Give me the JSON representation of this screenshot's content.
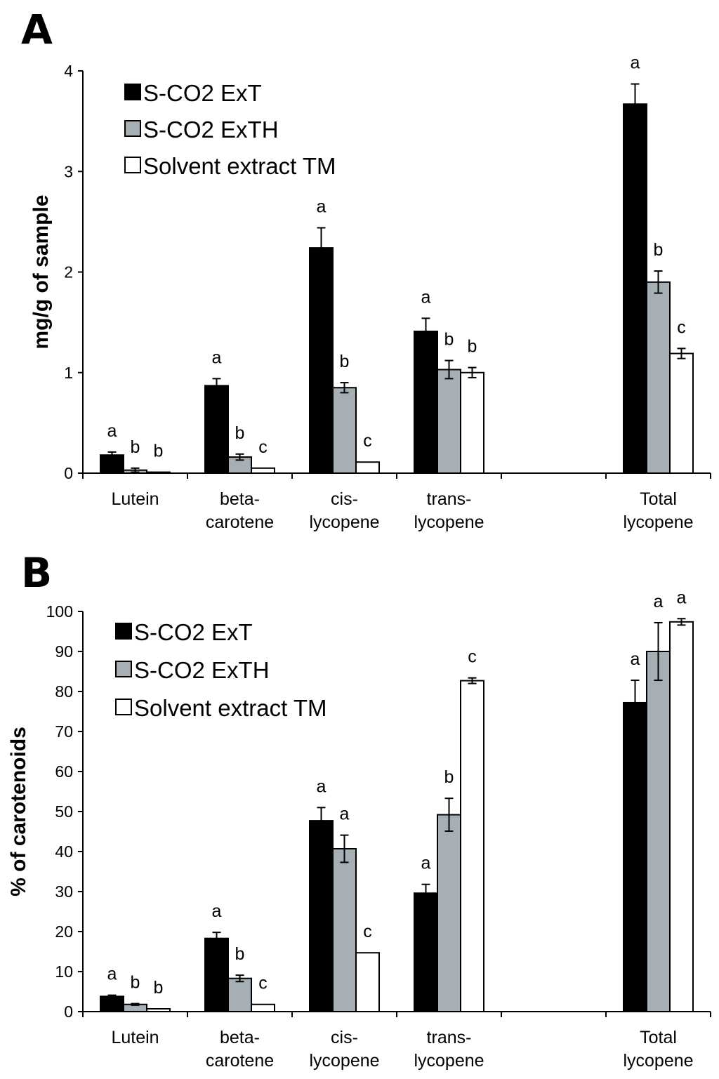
{
  "chart_data": [
    {
      "panel": "A",
      "type": "bar",
      "ylabel": "mg/g of sample",
      "xlabel": "",
      "ylim": [
        0,
        4
      ],
      "yticks": [
        "0",
        "1",
        "2",
        "3",
        "4"
      ],
      "categories": [
        [
          "Lutein"
        ],
        [
          "beta-",
          "carotene"
        ],
        [
          "cis-",
          "lycopene"
        ],
        [
          "trans-",
          "lycopene"
        ],
        [
          ""
        ],
        [
          "Total",
          "lycopene"
        ]
      ],
      "legend": {
        "position": "top-left",
        "entries": [
          "S-CO2 ExT",
          "S-CO2 ExTH",
          "Solvent extract TM"
        ]
      },
      "series": [
        {
          "name": "S-CO2 ExT",
          "color": "#000000",
          "values": [
            0.18,
            0.87,
            2.24,
            1.41,
            null,
            3.67
          ],
          "errors": [
            0.03,
            0.07,
            0.2,
            0.13,
            null,
            0.2
          ],
          "labels": [
            "a",
            "a",
            "a",
            "a",
            "",
            "a"
          ]
        },
        {
          "name": "S-CO2 ExTH",
          "color": "#a6b0b4",
          "values": [
            0.03,
            0.16,
            0.85,
            1.03,
            null,
            1.9
          ],
          "errors": [
            0.02,
            0.03,
            0.05,
            0.09,
            null,
            0.11
          ],
          "labels": [
            "b",
            "b",
            "b",
            "b",
            "",
            "b"
          ]
        },
        {
          "name": "Solvent extract TM",
          "color": "#ffffff",
          "values": [
            0.01,
            0.05,
            0.11,
            1.0,
            null,
            1.19
          ],
          "errors": [
            0,
            0,
            0,
            0.05,
            null,
            0.05
          ],
          "labels": [
            "b",
            "c",
            "c",
            "b",
            "",
            "c"
          ]
        }
      ]
    },
    {
      "panel": "B",
      "type": "bar",
      "ylabel": "% of carotenoids",
      "xlabel": "",
      "ylim": [
        0,
        100
      ],
      "yticks": [
        "0",
        "10",
        "20",
        "30",
        "40",
        "50",
        "60",
        "70",
        "80",
        "90",
        "100"
      ],
      "categories": [
        [
          "Lutein"
        ],
        [
          "beta-",
          "carotene"
        ],
        [
          "cis-",
          "lycopene"
        ],
        [
          "trans-",
          "lycopene"
        ],
        [
          ""
        ],
        [
          "Total",
          "lycopene"
        ]
      ],
      "legend": {
        "position": "top-left",
        "entries": [
          "S-CO2 ExT",
          "S-CO2 ExTH",
          "Solvent extract TM"
        ]
      },
      "series": [
        {
          "name": "S-CO2 ExT",
          "color": "#000000",
          "values": [
            3.8,
            18.3,
            47.7,
            29.6,
            null,
            77.2
          ],
          "errors": [
            0.3,
            1.5,
            3.3,
            2.2,
            null,
            5.6
          ],
          "labels": [
            "a",
            "a",
            "a",
            "a",
            "",
            "a"
          ]
        },
        {
          "name": "S-CO2 ExTH",
          "color": "#a6b0b4",
          "values": [
            1.8,
            8.3,
            40.7,
            49.2,
            null,
            90.0
          ],
          "errors": [
            0.2,
            0.8,
            3.4,
            4.1,
            null,
            7.2
          ],
          "labels": [
            "b",
            "b",
            "a",
            "b",
            "",
            "a"
          ]
        },
        {
          "name": "Solvent extract TM",
          "color": "#ffffff",
          "values": [
            0.7,
            1.8,
            14.7,
            82.7,
            null,
            97.4
          ],
          "errors": [
            0,
            0,
            0,
            0.7,
            null,
            0.8
          ],
          "labels": [
            "b",
            "c",
            "c",
            "c",
            "",
            "a"
          ]
        }
      ]
    }
  ]
}
